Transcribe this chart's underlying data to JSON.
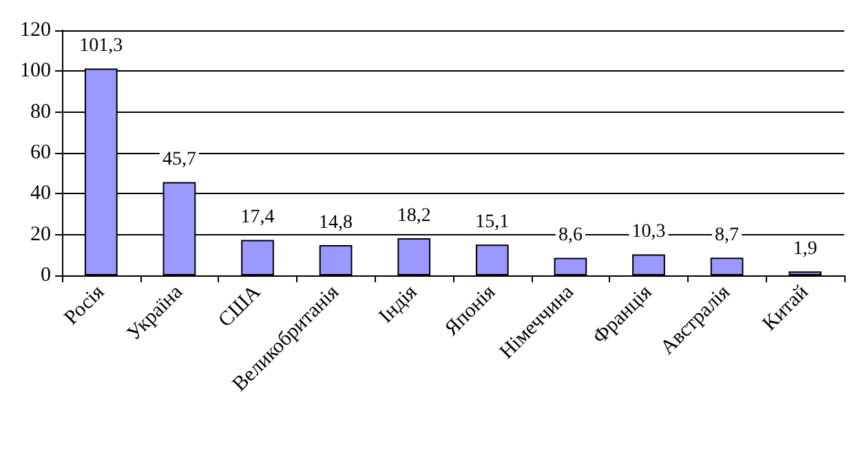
{
  "chart_data": {
    "type": "bar",
    "categories": [
      "Росія",
      "Україна",
      "США",
      "Великобританія",
      "Індія",
      "Японія",
      "Німеччина",
      "Франція",
      "Австралія",
      "Китай"
    ],
    "values": [
      101.3,
      45.7,
      17.4,
      14.8,
      18.2,
      15.1,
      8.6,
      10.3,
      8.7,
      1.9
    ],
    "value_labels": [
      "101,3",
      "45,7",
      "17,4",
      "14,8",
      "18,2",
      "15,1",
      "8,6",
      "10,3",
      "8,7",
      "1,9"
    ],
    "color": "#9999ff",
    "ylim": [
      0,
      120
    ],
    "yticks": [
      0,
      20,
      40,
      60,
      80,
      100,
      120
    ],
    "grid": "y"
  }
}
